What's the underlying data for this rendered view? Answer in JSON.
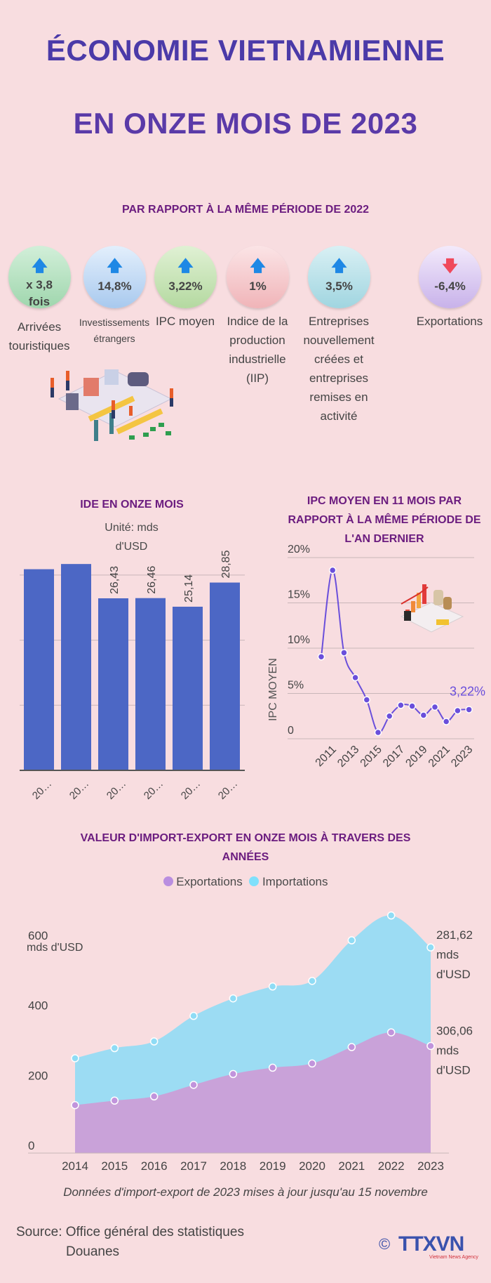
{
  "header": {
    "title_line1": "ÉCONOMIE VIETNAMIENNE",
    "title_line2": "EN ONZE MOIS DE 2023",
    "subtitle": "PAR RAPPORT À LA MÊME PÉRIODE DE 2022"
  },
  "indicators": [
    {
      "value": "x 3,8 fois",
      "label": "Arrivées touristiques",
      "direction": "up",
      "icon": "arrow-up-icon",
      "color_top": "#d2efd9",
      "color_bottom": "#9fd6ad"
    },
    {
      "value": "14,8%",
      "label": "Investissements étrangers",
      "direction": "up",
      "icon": "arrow-up-icon",
      "color_top": "#e3effc",
      "color_bottom": "#a8c9ee"
    },
    {
      "value": "3,22%",
      "label": "IPC moyen",
      "direction": "up",
      "icon": "arrow-up-icon",
      "color_top": "#e0f1d4",
      "color_bottom": "#b4d9a0"
    },
    {
      "value": "1%",
      "label": "Indice de la production industrielle (IIP)",
      "direction": "up",
      "icon": "arrow-up-icon",
      "color_top": "#fbe4e6",
      "color_bottom": "#f0b4b8"
    },
    {
      "value": "3,5%",
      "label": "Entreprises nouvellement créées et entreprises remises en activité",
      "direction": "up",
      "icon": "arrow-up-icon",
      "color_top": "#d9f0f4",
      "color_bottom": "#a0d5e0"
    },
    {
      "value": "-6,4%",
      "label": "Exportations",
      "direction": "down",
      "icon": "arrow-down-icon",
      "color_top": "#f3eafb",
      "color_bottom": "#c8b2ea"
    }
  ],
  "colors": {
    "background": "#f8dde0",
    "title": "#4b3aa8",
    "section_title": "#6b1c7f",
    "arrow_up": "#1e88e5",
    "arrow_down": "#f0485a",
    "bar": "#4c67c5",
    "ipc_line": "#6a4fdb",
    "exports": "#c9a2d9",
    "imports": "#9cdcf3"
  },
  "chart_data": [
    {
      "type": "bar",
      "title": "IDE EN ONZE MOIS",
      "subtitle": "Unité: mds d'USD",
      "categories": [
        "20…",
        "20…",
        "20…",
        "20…",
        "20…",
        "20…"
      ],
      "values": [
        30.9,
        31.7,
        26.43,
        26.46,
        25.14,
        28.85
      ],
      "data_labels": [
        "",
        "",
        "26,43",
        "26,46",
        "25,14",
        "28,85"
      ],
      "ylim": [
        0,
        33
      ],
      "gridlines": [
        10,
        20,
        30
      ],
      "grid": true
    },
    {
      "type": "line",
      "title": "IPC MOYEN EN 11 MOIS PAR RAPPORT À LA MÊME PÉRIODE DE L'AN DERNIER",
      "ylabel": "IPC MOYEN",
      "x": [
        2010,
        2011,
        2012,
        2013,
        2014,
        2015,
        2016,
        2017,
        2018,
        2019,
        2020,
        2021,
        2022,
        2023
      ],
      "values": [
        9.05,
        18.6,
        9.5,
        6.75,
        4.3,
        0.7,
        2.5,
        3.7,
        3.6,
        2.6,
        3.5,
        1.9,
        3.1,
        3.22
      ],
      "x_tick_labels": [
        "2011",
        "2013",
        "2015",
        "2017",
        "2019",
        "2021",
        "2023"
      ],
      "y_tick_labels": [
        "0",
        "5%",
        "10%",
        "15%",
        "20%"
      ],
      "ylim": [
        0,
        20
      ],
      "annotation": "3,22%",
      "grid": true
    },
    {
      "type": "area",
      "stacked": true,
      "title": "VALEUR D'IMPORT-EXPORT EN ONZE MOIS À TRAVERS DES ANNÉES",
      "ylabel": "mds d'USD",
      "categories": [
        "2014",
        "2015",
        "2016",
        "2017",
        "2018",
        "2019",
        "2020",
        "2021",
        "2022",
        "2023"
      ],
      "series": [
        {
          "name": "Exportations",
          "values": [
            137,
            150,
            162,
            195,
            226,
            244,
            256,
            303,
            345,
            306.06
          ]
        },
        {
          "name": "Importations",
          "values": [
            134,
            150,
            157,
            197,
            216,
            232,
            236,
            305,
            334,
            281.62
          ]
        }
      ],
      "y_tick_labels": [
        "0",
        "200",
        "400",
        "600"
      ],
      "ylim": [
        0,
        680
      ],
      "annotations": [
        {
          "series": "Importations",
          "lines": [
            "281,62",
            "mds",
            "d'USD"
          ]
        },
        {
          "series": "Exportations",
          "lines": [
            "306,06",
            "mds",
            "d'USD"
          ]
        }
      ],
      "legend": "top",
      "note": "Données d'import-export de 2023 mises à jour jusqu'au 15 novembre"
    }
  ],
  "footer": {
    "source_line1": "Source: Office général des statistiques",
    "source_line2": "Douanes",
    "logo_text": "TTXVN",
    "logo_tagline": "Vietnam News Agency",
    "copyright": "©"
  }
}
